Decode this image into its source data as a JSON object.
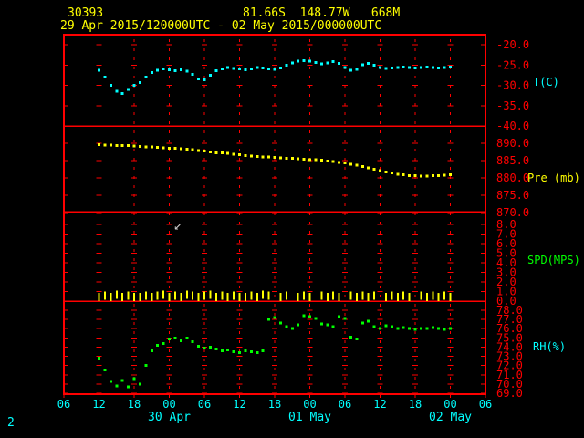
{
  "header": {
    "station_id": "30393",
    "location": "81.66S  148.77W   668M",
    "time_range": "29 Apr 2015/120000UTC - 02 May 2015/000000UTC"
  },
  "footer": {
    "page_indicator": "2"
  },
  "colors": {
    "background": "#000000",
    "red": "#ff0000",
    "yellow": "#ffff00",
    "cyan": "#00ffff",
    "green": "#00ff00",
    "annotation": "#cccccc"
  },
  "chart_data": {
    "type": "scatter",
    "title": "29 Apr 2015/120000UTC - 02 May 2015/000000UTC",
    "grid": true,
    "legend_position": "right",
    "x_axis": {
      "unit": "hour (UTC)",
      "tick_interval_hours": 6,
      "total_hours": 72,
      "tick_labels": [
        "06",
        "12",
        "18",
        "00",
        "06",
        "12",
        "18",
        "00",
        "06",
        "12",
        "18",
        "00",
        "06"
      ],
      "date_labels": [
        {
          "text": "30 Apr",
          "tick_index": 3
        },
        {
          "text": "01 May",
          "tick_index": 7
        },
        {
          "text": "02 May",
          "tick_index": 11
        }
      ]
    },
    "panels": [
      {
        "id": "temperature",
        "unit_label": "T(C)",
        "label_color": "#00ffff",
        "color": "#00ffff",
        "marker": "square",
        "ylim": [
          -40,
          -20
        ],
        "ticks": [
          -20,
          -25,
          -30,
          -35,
          -40
        ],
        "series": {
          "start_hour": 6,
          "step_hours": 1,
          "values": [
            -26.3,
            -28.0,
            -30.0,
            -31.5,
            -32.0,
            -31.0,
            -30.0,
            -29.3,
            -28.0,
            -26.8,
            -26.3,
            -26.0,
            -26.2,
            -26.4,
            -26.2,
            -26.5,
            -27.3,
            -28.4,
            -28.6,
            -27.5,
            -26.4,
            -25.9,
            -25.6,
            -25.8,
            -26.0,
            -26.2,
            -25.9,
            -25.6,
            -25.7,
            -25.9,
            -26.1,
            -25.7,
            -25.0,
            -24.5,
            -24.1,
            -23.9,
            -24.1,
            -24.4,
            -24.7,
            -24.5,
            -24.2,
            -24.6,
            -25.6,
            -26.3,
            -26.1,
            -24.9,
            -24.6,
            -25.1,
            -25.6,
            -25.8,
            -25.7,
            -25.6,
            -25.5,
            -25.6,
            -25.7,
            -25.6,
            -25.5,
            -25.6,
            -25.7,
            -25.6,
            -25.5
          ]
        }
      },
      {
        "id": "pressure",
        "unit_label": "Pre (mb)",
        "label_color": "#ffff00",
        "color": "#ffff00",
        "marker": "square",
        "ylim": [
          870,
          890
        ],
        "ticks": [
          890,
          885,
          880,
          875,
          870
        ],
        "series": {
          "start_hour": 6,
          "step_hours": 1,
          "values": [
            889.6,
            889.5,
            889.5,
            889.4,
            889.4,
            889.3,
            889.2,
            889.1,
            889.0,
            888.9,
            888.8,
            888.7,
            888.6,
            888.5,
            888.4,
            888.3,
            888.1,
            887.9,
            887.7,
            887.5,
            887.3,
            887.2,
            887.1,
            886.9,
            886.7,
            886.5,
            886.3,
            886.2,
            886.1,
            886.0,
            885.9,
            885.8,
            885.7,
            885.6,
            885.5,
            885.4,
            885.3,
            885.2,
            885.1,
            884.9,
            884.7,
            884.5,
            884.3,
            884.0,
            883.7,
            883.3,
            882.9,
            882.5,
            882.1,
            881.7,
            881.4,
            881.1,
            880.9,
            880.7,
            880.6,
            880.5,
            880.5,
            880.6,
            880.7,
            880.8,
            880.9
          ]
        }
      },
      {
        "id": "wind_speed",
        "unit_label": "SPD(MPS)",
        "label_color": "#00ff00",
        "color": "#ffff00",
        "marker": "vbar",
        "ylim": [
          0,
          8
        ],
        "ticks": [
          8,
          7,
          6,
          5,
          4,
          3,
          2,
          1,
          0
        ],
        "annotation": {
          "hour": 18.8,
          "value": 7.5,
          "glyph": "↙",
          "color": "#cccccc"
        },
        "series": {
          "start_hour": 6,
          "step_hours": 1,
          "values": [
            0.5,
            0.6,
            0.5,
            0.7,
            0.5,
            0.6,
            0.5,
            0.5,
            0.6,
            0.5,
            0.6,
            0.7,
            0.5,
            0.6,
            0.5,
            0.7,
            0.6,
            0.5,
            0.6,
            0.7,
            0.5,
            0.6,
            0.5,
            0.6,
            0.5,
            0.5,
            0.6,
            0.5,
            0.7,
            0.6,
            null,
            0.5,
            0.6,
            null,
            0.5,
            0.6,
            0.5,
            null,
            0.6,
            0.5,
            0.6,
            0.5,
            null,
            0.6,
            0.5,
            0.6,
            0.5,
            0.6,
            null,
            0.5,
            0.6,
            0.5,
            0.6,
            0.5,
            null,
            0.6,
            0.5,
            0.6,
            0.5,
            0.6,
            0.5
          ]
        }
      },
      {
        "id": "relative_humidity",
        "unit_label": "RH(%)",
        "label_color": "#00ffff",
        "color": "#00ff00",
        "marker": "square",
        "ylim": [
          69,
          78
        ],
        "ticks": [
          78,
          77,
          76,
          75,
          74,
          73,
          72,
          71,
          70,
          69
        ],
        "series": {
          "start_hour": 6,
          "step_hours": 1,
          "values": [
            72.8,
            71.5,
            70.3,
            69.8,
            70.4,
            69.7,
            70.6,
            70.0,
            72.0,
            73.6,
            74.2,
            74.4,
            74.9,
            75.0,
            74.7,
            75.0,
            74.6,
            74.1,
            73.9,
            74.0,
            73.8,
            73.6,
            73.7,
            73.5,
            73.4,
            73.6,
            73.5,
            73.4,
            73.6,
            77.0,
            77.2,
            76.6,
            76.2,
            76.0,
            76.4,
            77.4,
            77.3,
            77.1,
            76.5,
            76.4,
            76.2,
            77.3,
            77.1,
            75.1,
            74.9,
            76.6,
            76.8,
            76.2,
            76.0,
            76.3,
            76.2,
            76.0,
            76.1,
            76.0,
            75.9,
            76.0,
            76.0,
            76.1,
            76.0,
            75.9,
            76.0
          ]
        }
      }
    ]
  }
}
